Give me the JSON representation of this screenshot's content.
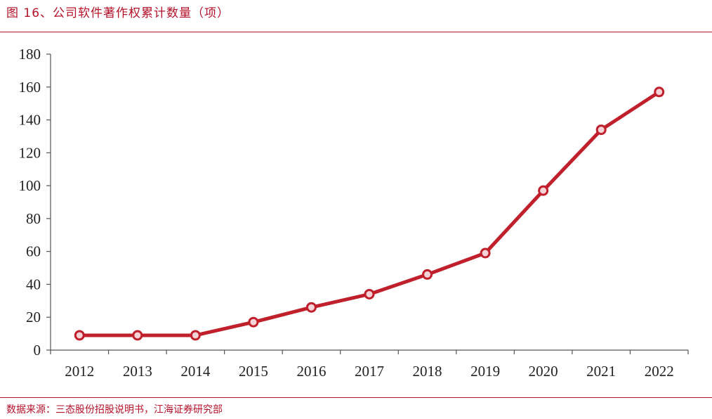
{
  "title": "图 16、公司软件著作权累计数量（项）",
  "source": "数据来源：三态股份招股说明书，江海证券研究部",
  "colors": {
    "accent": "#b3122a",
    "line": "#c0202b",
    "marker_fill": "#f6d3d6"
  },
  "chart_data": {
    "type": "line",
    "title": "公司软件著作权累计数量（项）",
    "xlabel": "",
    "ylabel": "",
    "categories": [
      "2012",
      "2013",
      "2014",
      "2015",
      "2016",
      "2017",
      "2018",
      "2019",
      "2020",
      "2021",
      "2022"
    ],
    "series": [
      {
        "values": [
          9,
          9,
          9,
          17,
          26,
          34,
          46,
          59,
          97,
          134,
          157
        ]
      }
    ],
    "ylim": [
      0,
      180
    ],
    "yticks": [
      0,
      20,
      40,
      60,
      80,
      100,
      120,
      140,
      160,
      180
    ],
    "grid": false,
    "legend": "none"
  }
}
